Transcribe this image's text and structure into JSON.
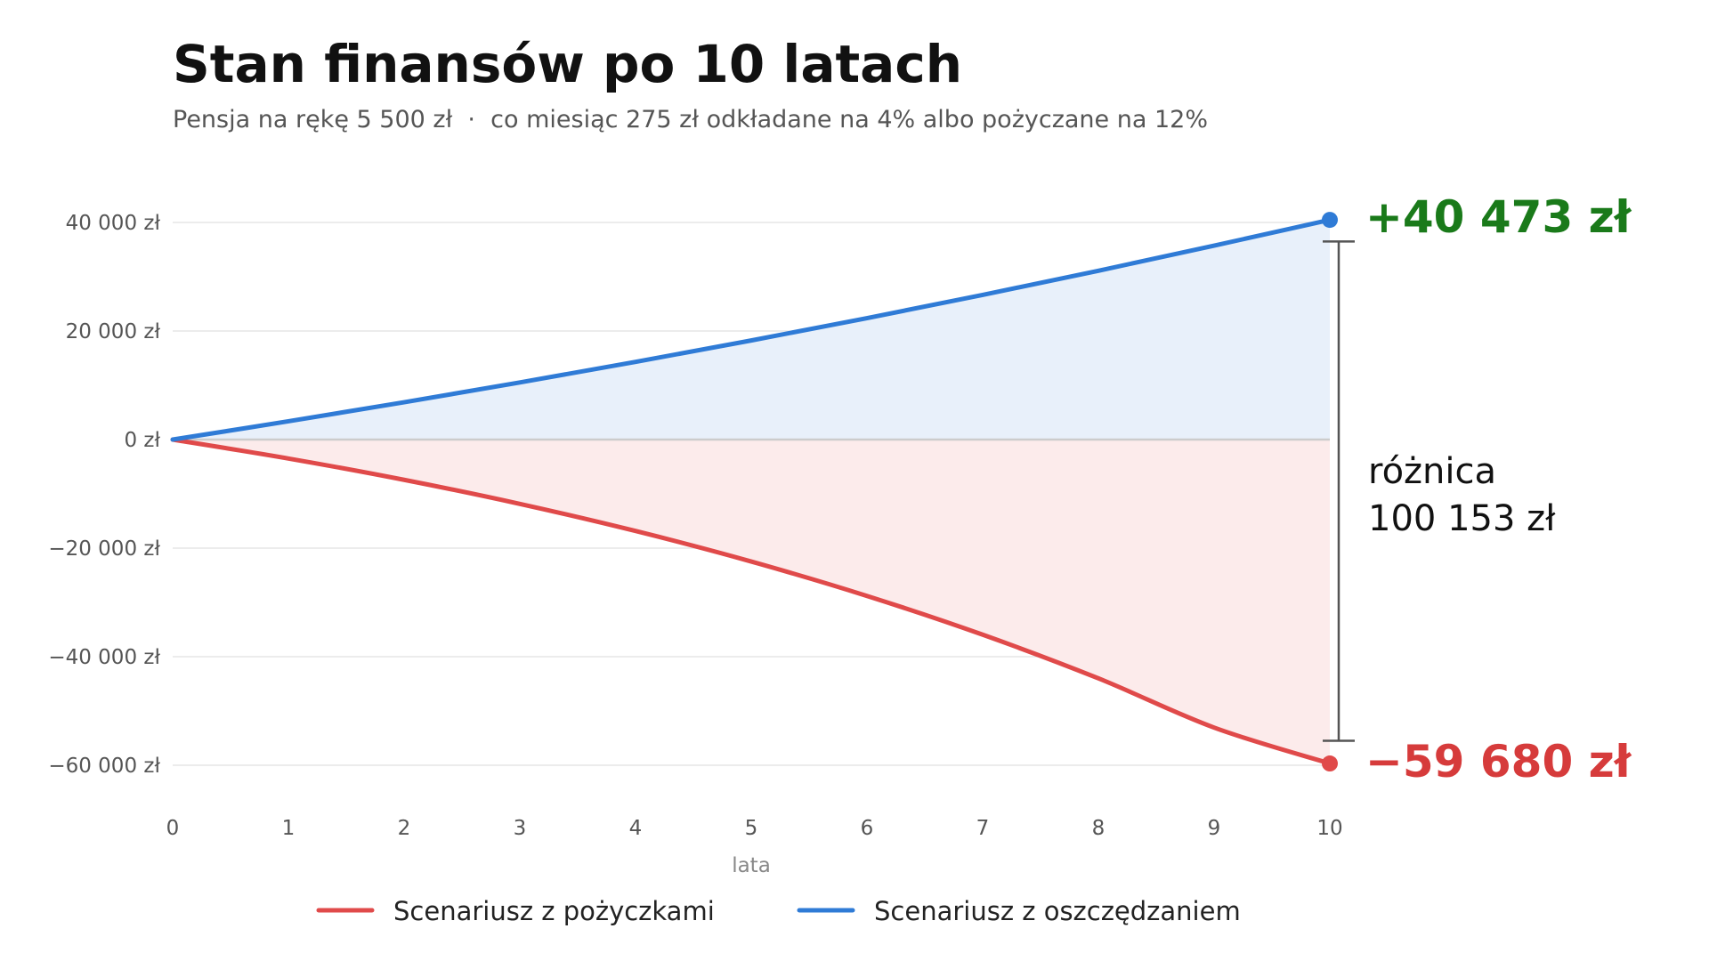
{
  "chart_data": {
    "type": "line",
    "title": "Stan finansów po 10 latach",
    "subtitle": "Pensja na rękę 5 500 zł  ·  co miesiąc 275 zł odkładane na 4% albo pożyczane na 12%",
    "xlabel": "lata",
    "ylabel": "",
    "xlim": [
      0,
      10
    ],
    "ylim": [
      -68000,
      48000
    ],
    "x_ticks": [
      0,
      1,
      2,
      3,
      4,
      5,
      6,
      7,
      8,
      9,
      10
    ],
    "x_tick_labels": [
      "0",
      "1",
      "2",
      "3",
      "4",
      "5",
      "6",
      "7",
      "8",
      "9",
      "10"
    ],
    "y_ticks": [
      40000,
      20000,
      0,
      -20000,
      -40000,
      -60000
    ],
    "y_tick_labels": [
      "40 000 zł",
      "20 000 zł",
      "0 zł",
      "−20 000 zł",
      "−40 000 zł",
      "−60 000 zł"
    ],
    "grid": true,
    "legend_position": "bottom",
    "x": [
      0,
      1,
      2,
      3,
      4,
      5,
      6,
      7,
      8,
      9,
      10
    ],
    "series": [
      {
        "name": "Scenariusz z pożyczkami",
        "color": "#e04a4a",
        "fill_color": "#fcebeb",
        "values": [
          0,
          -3489,
          -7420,
          -11850,
          -16842,
          -22467,
          -28805,
          -35947,
          -43994,
          -53063,
          -59680
        ]
      },
      {
        "name": "Scenariusz z oszczędzaniem",
        "color": "#2f7bd6",
        "fill_color": "#e8f0fa",
        "values": [
          0,
          3367,
          6871,
          10517,
          14312,
          18261,
          22371,
          26648,
          31100,
          35733,
          40473
        ]
      }
    ],
    "annotations": {
      "end_savings": "+40 473 zł",
      "end_savings_color": "#1a7a1a",
      "end_loans": "−59 680 zł",
      "end_loans_color": "#d63b3b",
      "difference_line1": "różnica",
      "difference_line2": "100 153 zł",
      "difference_from": 36500,
      "difference_to": -55500
    },
    "colors": {
      "grid": "#e6e6e6",
      "zero_line": "#cccccc",
      "bracket": "#555555"
    }
  }
}
